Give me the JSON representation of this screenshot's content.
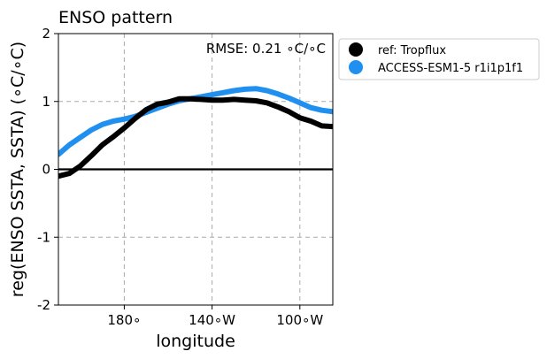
{
  "chart_data": {
    "type": "line",
    "title": "ENSO pattern",
    "xlabel": "longitude",
    "ylabel": "reg(ENSO SSTA, SSTA) (∘C/∘C)",
    "annotation": "RMSE: 0.21 ∘C/∘C",
    "x_units": "degrees longitude (east-positive; 180° = 180, 140°W = 220, 100°W = 260)",
    "xlim": [
      150,
      275
    ],
    "ylim": [
      -2,
      2
    ],
    "x_ticks": [
      {
        "value": 180,
        "label": "180∘"
      },
      {
        "value": 220,
        "label": "140∘W"
      },
      {
        "value": 260,
        "label": "100∘W"
      }
    ],
    "y_ticks": [
      {
        "value": 2,
        "label": "2"
      },
      {
        "value": 1,
        "label": "1"
      },
      {
        "value": 0,
        "label": "0"
      },
      {
        "value": -1,
        "label": "-1"
      },
      {
        "value": -2,
        "label": "-2"
      }
    ],
    "grid": true,
    "zero_line": true,
    "legend_position": "outside upper right",
    "series": [
      {
        "name": "ref: Tropflux",
        "color": "#000000",
        "x": [
          150,
          155,
          160,
          165,
          170,
          175,
          180,
          185,
          190,
          195,
          200,
          205,
          210,
          215,
          220,
          225,
          230,
          235,
          240,
          245,
          250,
          255,
          260,
          265,
          270,
          275
        ],
        "y": [
          -0.1,
          -0.06,
          0.05,
          0.2,
          0.36,
          0.48,
          0.61,
          0.75,
          0.88,
          0.96,
          0.99,
          1.04,
          1.04,
          1.03,
          1.02,
          1.02,
          1.03,
          1.02,
          1.01,
          0.98,
          0.92,
          0.85,
          0.76,
          0.71,
          0.64,
          0.63
        ]
      },
      {
        "name": "ACCESS-ESM1-5 r1i1p1f1",
        "color": "#1f8ff0",
        "x": [
          150,
          155,
          160,
          165,
          170,
          175,
          180,
          185,
          190,
          195,
          200,
          205,
          210,
          215,
          220,
          225,
          230,
          235,
          240,
          245,
          250,
          255,
          260,
          265,
          270,
          275
        ],
        "y": [
          0.22,
          0.36,
          0.47,
          0.58,
          0.66,
          0.71,
          0.74,
          0.78,
          0.84,
          0.9,
          0.96,
          1.01,
          1.04,
          1.07,
          1.1,
          1.13,
          1.16,
          1.18,
          1.19,
          1.16,
          1.11,
          1.05,
          0.98,
          0.91,
          0.87,
          0.85
        ]
      }
    ]
  }
}
